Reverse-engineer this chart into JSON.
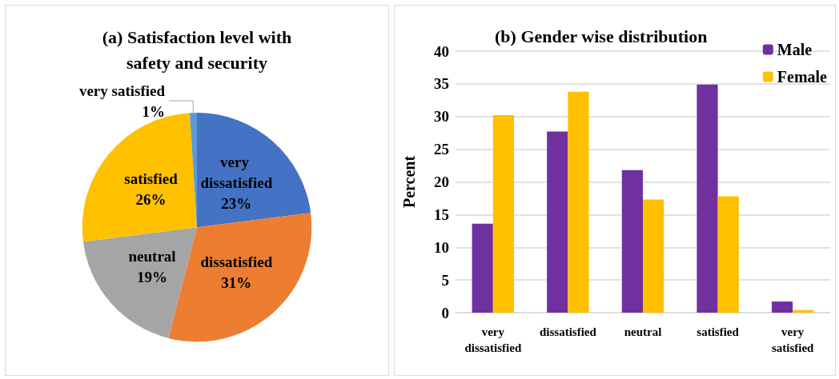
{
  "chart_data": [
    {
      "type": "pie",
      "title": "(a) Satisfaction level with\nsafety and security",
      "categories": [
        "very dissatisfied",
        "dissatisfied",
        "neutral",
        "satisfied",
        "very satisfied"
      ],
      "values": [
        23,
        31,
        19,
        26,
        1
      ],
      "colors": [
        "#4472c4",
        "#ed7d31",
        "#a5a5a5",
        "#ffc000",
        "#5b9bd5"
      ],
      "value_labels": [
        "23%",
        "31%",
        "19%",
        "26%",
        "1%"
      ],
      "legend": false
    },
    {
      "type": "bar",
      "title": "(b) Gender wise distribution",
      "ylabel": "Percent",
      "categories": [
        "very\ndissatisfied",
        "dissatisfied",
        "neutral",
        "satisfied",
        "very\nsatisfied"
      ],
      "series": [
        {
          "name": "Male",
          "color": "#7030a0",
          "values": [
            13.6,
            27.7,
            21.8,
            34.9,
            1.7
          ]
        },
        {
          "name": "Female",
          "color": "#ffc000",
          "values": [
            30.2,
            33.8,
            17.3,
            17.8,
            0.4
          ]
        }
      ],
      "ylim": [
        0,
        40
      ],
      "yticks": [
        0,
        5,
        10,
        15,
        20,
        25,
        30,
        35,
        40
      ],
      "grid": "y",
      "legend": "top right"
    }
  ]
}
